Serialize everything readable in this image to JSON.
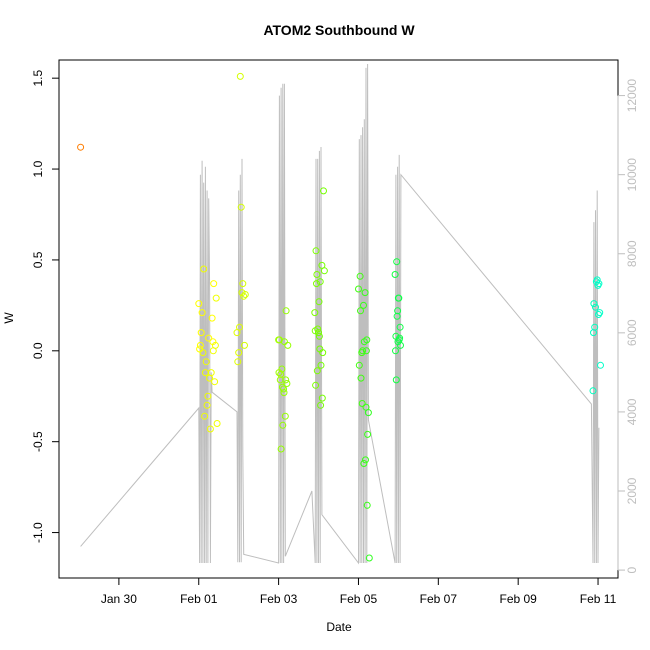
{
  "chart_data": {
    "type": "scatter",
    "title": "ATOM2 Southbound W",
    "xlabel": "Date",
    "ylabel": "W",
    "xlim": [
      "2025-01-28T12:00",
      "2025-02-11T12:00"
    ],
    "ylim": [
      -1.25,
      1.6
    ],
    "y2lim": [
      -200,
      12900
    ],
    "x_ticks": [
      {
        "date": "2025-01-30T00:00",
        "label": "Jan 30"
      },
      {
        "date": "2025-02-01T00:00",
        "label": "Feb 01"
      },
      {
        "date": "2025-02-03T00:00",
        "label": "Feb 03"
      },
      {
        "date": "2025-02-05T00:00",
        "label": "Feb 05"
      },
      {
        "date": "2025-02-07T00:00",
        "label": "Feb 07"
      },
      {
        "date": "2025-02-09T00:00",
        "label": "Feb 09"
      },
      {
        "date": "2025-02-11T00:00",
        "label": "Feb 11"
      }
    ],
    "y_ticks": [
      {
        "value": -1.0,
        "label": "-1.0"
      },
      {
        "value": -0.5,
        "label": "-0.5"
      },
      {
        "value": 0.0,
        "label": "0.0"
      },
      {
        "value": 0.5,
        "label": "0.5"
      },
      {
        "value": 1.0,
        "label": "1.0"
      },
      {
        "value": 1.5,
        "label": "1.5"
      }
    ],
    "y2_ticks": [
      {
        "value": 0,
        "label": "0"
      },
      {
        "value": 2000,
        "label": "2000"
      },
      {
        "value": 4000,
        "label": "4000"
      },
      {
        "value": 6000,
        "label": "6000"
      },
      {
        "value": 8000,
        "label": "8000"
      },
      {
        "value": 10000,
        "label": "10000"
      },
      {
        "value": 12000,
        "label": "12000"
      }
    ],
    "grid": false,
    "legend": "none",
    "colors": {
      "track": "#bebebe",
      "axis": "#000000",
      "secondary_axis": "#bebebe"
    },
    "scatter_series": {
      "x": [
        "2025-01-29T01:00",
        "2025-02-01T00:00",
        "2025-02-01T01:00",
        "2025-02-01T02:00",
        "2025-02-01T03:00",
        "2025-02-01T04:00",
        "2025-02-01T05:00",
        "2025-02-01T06:00",
        "2025-02-01T07:00",
        "2025-02-01T08:00",
        "2025-02-01T09:00",
        "2025-02-01T10:00",
        "2025-02-01T00:30",
        "2025-02-01T02:30",
        "2025-02-01T04:30",
        "2025-02-01T06:30",
        "2025-02-01T08:30",
        "2025-02-01T09:30",
        "2025-02-01T05:30",
        "2025-02-01T03:30",
        "2025-02-01T07:30",
        "2025-02-01T01:30",
        "2025-02-01T10:30",
        "2025-02-01T08:45",
        "2025-02-01T11:00",
        "2025-02-01T23:30",
        "2025-02-02T00:30",
        "2025-02-02T01:00",
        "2025-02-02T01:30",
        "2025-02-02T02:00",
        "2025-02-02T02:30",
        "2025-02-02T03:00",
        "2025-02-02T03:30",
        "2025-02-02T00:00",
        "2025-02-01T23:00",
        "2025-02-02T04:00",
        "2025-02-03T00:00",
        "2025-02-03T01:00",
        "2025-02-03T02:00",
        "2025-02-03T03:00",
        "2025-02-03T04:00",
        "2025-02-03T00:30",
        "2025-02-03T01:30",
        "2025-02-03T02:30",
        "2025-02-03T03:30",
        "2025-02-03T04:30",
        "2025-02-03T05:00",
        "2025-02-03T00:15",
        "2025-02-03T02:15",
        "2025-02-03T03:15",
        "2025-02-03T01:15",
        "2025-02-03T04:15",
        "2025-02-03T05:30",
        "2025-02-03T22:00",
        "2025-02-03T23:00",
        "2025-02-04T00:00",
        "2025-02-04T01:00",
        "2025-02-04T02:00",
        "2025-02-04T03:00",
        "2025-02-03T22:30",
        "2025-02-03T23:30",
        "2025-02-04T00:30",
        "2025-02-04T01:30",
        "2025-02-04T02:30",
        "2025-02-03T22:15",
        "2025-02-03T23:15",
        "2025-02-04T00:15",
        "2025-02-04T01:15",
        "2025-02-04T02:15",
        "2025-02-03T21:45",
        "2025-02-04T03:30",
        "2025-02-03T22:45",
        "2025-02-04T00:45",
        "2025-02-05T00:00",
        "2025-02-05T01:00",
        "2025-02-05T02:00",
        "2025-02-05T03:00",
        "2025-02-05T04:00",
        "2025-02-05T05:00",
        "2025-02-05T00:30",
        "2025-02-05T01:30",
        "2025-02-05T02:30",
        "2025-02-05T03:30",
        "2025-02-05T04:30",
        "2025-02-05T05:30",
        "2025-02-05T06:00",
        "2025-02-05T02:15",
        "2025-02-05T03:15",
        "2025-02-05T04:15",
        "2025-02-05T05:15",
        "2025-02-05T06:30",
        "2025-02-05T01:15",
        "2025-02-05T04:45",
        "2025-02-05T22:00",
        "2025-02-05T23:00",
        "2025-02-06T00:00",
        "2025-02-06T01:00",
        "2025-02-05T22:30",
        "2025-02-05T23:30",
        "2025-02-06T00:30",
        "2025-02-05T22:15",
        "2025-02-05T23:15",
        "2025-02-06T00:15",
        "2025-02-05T22:45",
        "2025-02-05T23:45",
        "2025-02-06T00:45",
        "2025-02-06T01:15",
        "2025-02-10T21:00",
        "2025-02-10T22:00",
        "2025-02-10T23:00",
        "2025-02-11T00:00",
        "2025-02-11T01:00",
        "2025-02-10T21:30",
        "2025-02-10T22:30",
        "2025-02-10T23:30",
        "2025-02-11T00:30",
        "2025-02-10T21:15",
        "2025-02-11T00:15",
        "2025-02-11T01:30"
      ],
      "y": [
        1.12,
        0.26,
        0.03,
        0.21,
        0.45,
        -0.12,
        -0.3,
        0.07,
        -0.43,
        0.18,
        0.37,
        0.03,
        0.01,
        -0.01,
        -0.06,
        -0.15,
        0.05,
        -0.17,
        -0.25,
        -0.36,
        -0.12,
        0.1,
        0.29,
        0.0,
        -0.4,
        -0.06,
        0.13,
        1.51,
        0.79,
        0.32,
        0.37,
        0.3,
        0.03,
        -0.01,
        0.1,
        0.31,
        0.06,
        -0.16,
        -0.1,
        -0.21,
        -0.36,
        0.06,
        -0.54,
        -0.41,
        0.05,
        0.22,
        -0.18,
        -0.12,
        -0.2,
        -0.23,
        -0.13,
        -0.16,
        0.03,
        0.11,
        0.42,
        0.1,
        0.38,
        0.47,
        0.88,
        0.55,
        0.12,
        0.08,
        -0.08,
        -0.01,
        -0.19,
        -0.11,
        0.27,
        -0.3,
        -0.26,
        0.21,
        0.44,
        0.37,
        0.01,
        0.34,
        0.41,
        -0.01,
        0.25,
        0.32,
        0.06,
        -0.08,
        -0.15,
        0.0,
        0.05,
        -0.31,
        -0.46,
        -0.34,
        -0.29,
        -0.62,
        -0.6,
        -0.85,
        -1.14,
        0.22,
        0.0,
        0.42,
        0.49,
        0.29,
        0.13,
        0.08,
        0.22,
        0.06,
        0.0,
        0.19,
        0.29,
        -0.16,
        0.05,
        0.07,
        0.03,
        -0.22,
        0.13,
        0.38,
        0.36,
        0.21,
        0.26,
        0.24,
        0.39,
        0.37,
        0.1,
        0.2,
        -0.08
      ],
      "colors": [
        "#ff7d00",
        "#ffff00",
        "#ffff00",
        "#ffff00",
        "#f0ff00",
        "#f0ff00",
        "#f0ff00",
        "#ffff00",
        "#f0ff00",
        "#ffff00",
        "#ffff00",
        "#f0ff00",
        "#ffff00",
        "#f0ff00",
        "#f0ff00",
        "#f0ff00",
        "#ffff00",
        "#f0ff00",
        "#f0ff00",
        "#f0ff00",
        "#f0ff00",
        "#ffff00",
        "#f0ff00",
        "#f0ff00",
        "#f0ff00",
        "#e0ff00",
        "#e0ff00",
        "#d5ff00",
        "#d5ff00",
        "#d5ff00",
        "#d5ff00",
        "#d5ff00",
        "#d5ff00",
        "#e0ff00",
        "#e0ff00",
        "#d5ff00",
        "#a0ff00",
        "#a0ff00",
        "#95ff00",
        "#95ff00",
        "#95ff00",
        "#a0ff00",
        "#95ff00",
        "#95ff00",
        "#95ff00",
        "#95ff00",
        "#95ff00",
        "#a0ff00",
        "#95ff00",
        "#95ff00",
        "#a0ff00",
        "#95ff00",
        "#95ff00",
        "#7dff00",
        "#7dff00",
        "#75ff00",
        "#75ff00",
        "#75ff00",
        "#75ff00",
        "#7dff00",
        "#7dff00",
        "#75ff00",
        "#75ff00",
        "#75ff00",
        "#7dff00",
        "#7dff00",
        "#75ff00",
        "#75ff00",
        "#75ff00",
        "#7dff00",
        "#75ff00",
        "#7dff00",
        "#75ff00",
        "#40ff10",
        "#40ff10",
        "#40ff10",
        "#38ff18",
        "#38ff18",
        "#38ff18",
        "#40ff10",
        "#40ff10",
        "#40ff10",
        "#38ff18",
        "#38ff18",
        "#38ff18",
        "#30ff20",
        "#40ff10",
        "#38ff18",
        "#38ff18",
        "#38ff18",
        "#30ff20",
        "#40ff10",
        "#38ff18",
        "#10ff40",
        "#10ff40",
        "#10ff48",
        "#10ff48",
        "#10ff40",
        "#10ff48",
        "#10ff48",
        "#10ff40",
        "#10ff48",
        "#10ff48",
        "#10ff40",
        "#10ff48",
        "#10ff48",
        "#10ff48",
        "#00ffbf",
        "#00ffbf",
        "#00ffc8",
        "#00ffc8",
        "#00ffc8",
        "#00ffbf",
        "#00ffbf",
        "#00ffc8",
        "#00ffc8",
        "#00ffbf",
        "#00ffc8",
        "#00ffc8"
      ]
    },
    "track_series": {
      "note_units": "right axis",
      "points": [
        [
          "2025-01-29T01:00",
          600
        ],
        [
          "2025-02-01T00:00",
          4100
        ],
        [
          "2025-02-01T00:30",
          180
        ],
        [
          "2025-02-01T01:00",
          10000
        ],
        [
          "2025-02-01T01:30",
          180
        ],
        [
          "2025-02-01T02:00",
          10350
        ],
        [
          "2025-02-01T02:30",
          180
        ],
        [
          "2025-02-01T03:00",
          9800
        ],
        [
          "2025-02-01T03:30",
          180
        ],
        [
          "2025-02-01T04:00",
          10200
        ],
        [
          "2025-02-01T04:30",
          180
        ],
        [
          "2025-02-01T05:00",
          9600
        ],
        [
          "2025-02-01T05:30",
          180
        ],
        [
          "2025-02-01T06:00",
          9400
        ],
        [
          "2025-02-01T06:30",
          7200
        ],
        [
          "2025-02-01T07:00",
          180
        ],
        [
          "2025-02-01T07:30",
          5000
        ],
        [
          "2025-02-01T08:00",
          4500
        ],
        [
          "2025-02-01T23:00",
          4000
        ],
        [
          "2025-02-01T23:30",
          200
        ],
        [
          "2025-02-02T00:00",
          9600
        ],
        [
          "2025-02-02T00:30",
          200
        ],
        [
          "2025-02-02T01:00",
          10000
        ],
        [
          "2025-02-02T01:30",
          200
        ],
        [
          "2025-02-02T02:00",
          10400
        ],
        [
          "2025-02-02T02:30",
          3000
        ],
        [
          "2025-02-02T03:00",
          400
        ],
        [
          "2025-02-03T00:00",
          180
        ],
        [
          "2025-02-03T00:30",
          12000
        ],
        [
          "2025-02-03T01:00",
          180
        ],
        [
          "2025-02-03T01:30",
          12200
        ],
        [
          "2025-02-03T02:00",
          180
        ],
        [
          "2025-02-03T02:30",
          12300
        ],
        [
          "2025-02-03T03:00",
          180
        ],
        [
          "2025-02-03T03:30",
          12300
        ],
        [
          "2025-02-03T04:00",
          350
        ],
        [
          "2025-02-03T20:00",
          2000
        ],
        [
          "2025-02-03T22:00",
          180
        ],
        [
          "2025-02-03T22:30",
          10400
        ],
        [
          "2025-02-03T23:00",
          180
        ],
        [
          "2025-02-03T23:30",
          10400
        ],
        [
          "2025-02-04T00:00",
          180
        ],
        [
          "2025-02-04T00:30",
          10600
        ],
        [
          "2025-02-04T01:00",
          180
        ],
        [
          "2025-02-04T01:30",
          10700
        ],
        [
          "2025-02-04T02:00",
          1400
        ],
        [
          "2025-02-05T00:00",
          180
        ],
        [
          "2025-02-05T00:30",
          10900
        ],
        [
          "2025-02-05T01:00",
          180
        ],
        [
          "2025-02-05T01:30",
          11000
        ],
        [
          "2025-02-05T02:00",
          180
        ],
        [
          "2025-02-05T02:30",
          11200
        ],
        [
          "2025-02-05T03:00",
          180
        ],
        [
          "2025-02-05T03:30",
          11400
        ],
        [
          "2025-02-05T04:00",
          180
        ],
        [
          "2025-02-05T04:30",
          12700
        ],
        [
          "2025-02-05T05:00",
          180
        ],
        [
          "2025-02-05T05:30",
          12800
        ],
        [
          "2025-02-05T06:00",
          3800
        ],
        [
          "2025-02-05T22:00",
          180
        ],
        [
          "2025-02-05T22:30",
          10000
        ],
        [
          "2025-02-05T23:00",
          180
        ],
        [
          "2025-02-05T23:30",
          10200
        ],
        [
          "2025-02-06T00:00",
          180
        ],
        [
          "2025-02-06T00:30",
          10500
        ],
        [
          "2025-02-06T01:00",
          180
        ],
        [
          "2025-02-06T01:30",
          10000
        ],
        [
          "2025-02-10T20:00",
          4200
        ],
        [
          "2025-02-10T21:00",
          180
        ],
        [
          "2025-02-10T21:30",
          8800
        ],
        [
          "2025-02-10T22:00",
          180
        ],
        [
          "2025-02-10T22:30",
          9100
        ],
        [
          "2025-02-10T23:00",
          180
        ],
        [
          "2025-02-10T23:30",
          9600
        ],
        [
          "2025-02-11T00:00",
          180
        ],
        [
          "2025-02-11T00:30",
          3600
        ]
      ]
    }
  }
}
